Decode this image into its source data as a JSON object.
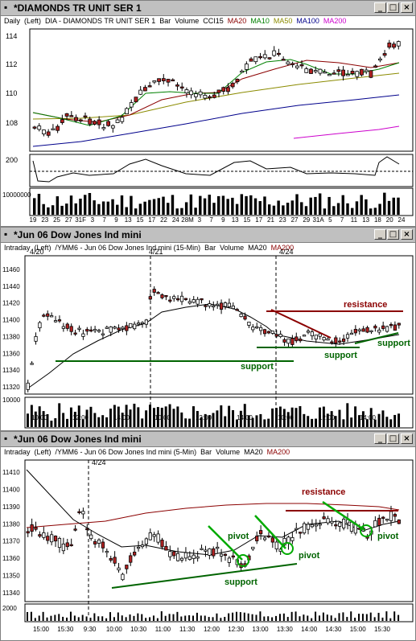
{
  "windows": [
    {
      "title": "*DIAMONDS TR UNIT SER 1",
      "legend": [
        {
          "text": "Daily",
          "color": "#000000"
        },
        {
          "text": "(Left)",
          "color": "#000000"
        },
        {
          "text": "DIA - DIAMONDS TR UNIT SER 1",
          "color": "#000000"
        },
        {
          "text": "Bar",
          "color": "#000000"
        },
        {
          "text": "Volume",
          "color": "#000000"
        },
        {
          "text": "CCI15",
          "color": "#000000"
        },
        {
          "text": "MA20",
          "color": "#8b0000"
        },
        {
          "text": "MA10",
          "color": "#008000"
        },
        {
          "text": "MA50",
          "color": "#8b8b00"
        },
        {
          "text": "MA100",
          "color": "#00008b"
        },
        {
          "text": "MA200",
          "color": "#cc00cc"
        }
      ],
      "price_ticks": [
        "114",
        "112",
        "110",
        "108"
      ],
      "cci_ticks": [
        "200",
        "0",
        "-200"
      ],
      "volume_tick": "10000000",
      "time_ticks": [
        "19",
        "23",
        "25",
        "27",
        "31F",
        "3",
        "7",
        "9",
        "13",
        "15",
        "17",
        "22",
        "24",
        "28M",
        "3",
        "7",
        "9",
        "13",
        "15",
        "17",
        "21",
        "23",
        "27",
        "29",
        "31A",
        "5",
        "7",
        "11",
        "13",
        "18",
        "20",
        "24"
      ]
    },
    {
      "title": "*Jun 06  Dow Jones Ind mini",
      "legend": [
        {
          "text": "Intraday",
          "color": "#000000"
        },
        {
          "text": "(Left)",
          "color": "#000000"
        },
        {
          "text": "/YMM6 - Jun 06  Dow Jones Ind mini  (15-Min)",
          "color": "#000000"
        },
        {
          "text": "Bar",
          "color": "#000000"
        },
        {
          "text": "Volume",
          "color": "#000000"
        },
        {
          "text": "MA20",
          "color": "#000000"
        },
        {
          "text": "MA200",
          "color": "#8b0000"
        }
      ],
      "price_ticks": [
        "11460",
        "11440",
        "11420",
        "11400",
        "11380",
        "11360",
        "11340",
        "11320"
      ],
      "volume_tick": "10000",
      "time_ticks": [
        "10:00",
        "12:00",
        "14:00",
        "10:00",
        "12:00",
        "14:00",
        "10:00",
        "12:00",
        "14:00"
      ],
      "session_labels": [
        "4/20",
        "4/21",
        "4/24"
      ],
      "annotations": {
        "resistance": "resistance",
        "support_left": "support",
        "support_mid": "support",
        "support_right": "support"
      }
    },
    {
      "title": "*Jun 06  Dow Jones Ind mini",
      "legend": [
        {
          "text": "Intraday",
          "color": "#000000"
        },
        {
          "text": "(Left)",
          "color": "#000000"
        },
        {
          "text": "/YMM6 - Jun 06  Dow Jones Ind mini  (5-Min)",
          "color": "#000000"
        },
        {
          "text": "Bar",
          "color": "#000000"
        },
        {
          "text": "Volume",
          "color": "#000000"
        },
        {
          "text": "MA20",
          "color": "#000000"
        },
        {
          "text": "MA200",
          "color": "#8b0000"
        }
      ],
      "price_ticks": [
        "11410",
        "11400",
        "11390",
        "11380",
        "11370",
        "11360",
        "11350",
        "11340"
      ],
      "volume_tick": "2000",
      "time_ticks": [
        "15:00",
        "15:30",
        "9:30",
        "10:00",
        "10:30",
        "11:00",
        "11:30",
        "12:00",
        "12:30",
        "13:00",
        "13:30",
        "14:00",
        "14:30",
        "15:00",
        "15:30"
      ],
      "session_labels": [
        "4/24"
      ],
      "annotations": {
        "resistance": "resistance",
        "pivot_1": "pivot",
        "pivot_2": "pivot",
        "pivot_3": "pivot",
        "support": "support"
      }
    }
  ],
  "colors": {
    "up_candle": "#ffffff",
    "down_candle": "#b22222",
    "annotation_red": "#8b0000",
    "annotation_green": "#006400"
  }
}
